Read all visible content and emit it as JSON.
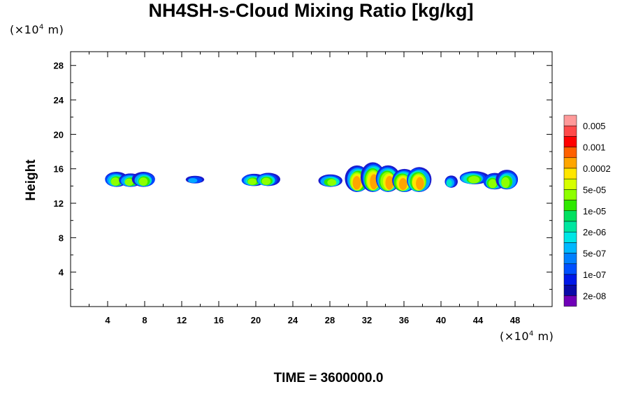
{
  "chart_data": {
    "type": "heatmap",
    "title": "NH4SH-s-Cloud Mixing Ratio [kg/kg]",
    "ylabel": "Height",
    "x_unit": "(×10",
    "x_unit_exp": "4",
    "x_unit_tail": " m)",
    "y_unit": "(×10",
    "y_unit_exp": "4",
    "y_unit_tail": " m)",
    "xlim": [
      0,
      52
    ],
    "ylim": [
      0,
      29.6
    ],
    "x_ticks": [
      4,
      8,
      12,
      16,
      20,
      24,
      28,
      32,
      36,
      40,
      44,
      48
    ],
    "y_ticks": [
      4,
      8,
      12,
      16,
      20,
      24,
      28
    ],
    "colorbar": {
      "labels": [
        "0.005",
        "0.001",
        "0.0002",
        "5e-05",
        "1e-05",
        "2e-06",
        "5e-07",
        "1e-07",
        "2e-08"
      ],
      "colors": [
        "#ff9a9a",
        "#ff4a4a",
        "#ff0000",
        "#ff6000",
        "#ffa500",
        "#ffe600",
        "#d6ff00",
        "#8eff00",
        "#2ee800",
        "#00e060",
        "#00e6a0",
        "#00e6e6",
        "#00b8ff",
        "#0080ff",
        "#0050ff",
        "#0018e8",
        "#0a0aa8",
        "#7000b8"
      ]
    },
    "cloud_regions": [
      {
        "x": [
          4.2,
          8.7
        ],
        "y": [
          13.9,
          15.9
        ],
        "peak": "1e-05"
      },
      {
        "x": [
          12.8,
          13.8
        ],
        "y": [
          14.3,
          15.2
        ],
        "peak": "5e-07"
      },
      {
        "x": [
          18.9,
          22.0
        ],
        "y": [
          14.0,
          15.6
        ],
        "peak": "1e-05"
      },
      {
        "x": [
          27.3,
          28.9
        ],
        "y": [
          13.9,
          15.7
        ],
        "peak": "1e-05"
      },
      {
        "x": [
          30.2,
          38.4
        ],
        "y": [
          13.3,
          16.8
        ],
        "peak": "0.0002"
      },
      {
        "x": [
          40.8,
          41.2
        ],
        "y": [
          13.8,
          15.4
        ],
        "peak": "5e-06"
      },
      {
        "x": [
          42.4,
          44.6
        ],
        "y": [
          14.2,
          16.1
        ],
        "peak": "1e-05"
      },
      {
        "x": [
          45.0,
          47.8
        ],
        "y": [
          13.6,
          15.9
        ],
        "peak": "1e-05"
      }
    ],
    "grid": false
  },
  "footer": {
    "time_label": "TIME = 3600000.0"
  }
}
